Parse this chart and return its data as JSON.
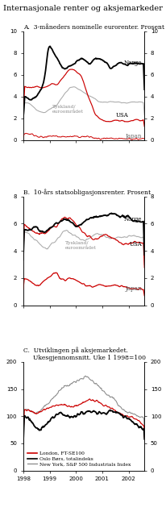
{
  "title": "Internasjonale renter og aksjemarkeder",
  "panel_A_title": "A.  3-måneders nominelle eurorenter. Prosent",
  "panel_B_title": "B.  10-års statsobligasjonsrenter. Prosent",
  "panel_C_title": "C.  Utviklingen på aksjemarkedet.\n     Ukesgjennomsnitt. Uke 1 1998=100",
  "legend_C": [
    [
      "London, FT-SE100",
      "#cc0000"
    ],
    [
      "Oslo Børs, totalindeks",
      "#000000"
    ],
    [
      "New York, S&P 500 Industrials Index",
      "#888888"
    ]
  ],
  "bg_color": "#ffffff",
  "panel_bg": "#ffffff"
}
